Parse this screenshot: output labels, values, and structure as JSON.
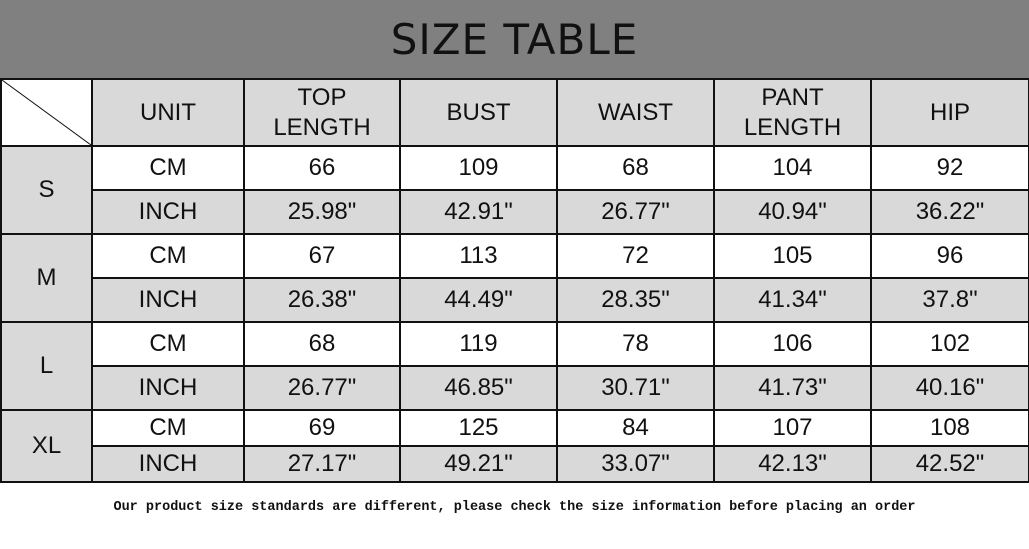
{
  "title": "SIZE TABLE",
  "headers": [
    "UNIT",
    "TOP\nLENGTH",
    "BUST",
    "WAIST",
    "PANT\nLENGTH",
    "HIP"
  ],
  "sizes": [
    {
      "size": "S",
      "cm": {
        "unit": "CM",
        "values": [
          "66",
          "109",
          "68",
          "104",
          "92"
        ]
      },
      "inch": {
        "unit": "INCH",
        "values": [
          "25.98\"",
          "42.91\"",
          "26.77\"",
          "40.94\"",
          "36.22\""
        ]
      }
    },
    {
      "size": "M",
      "cm": {
        "unit": "CM",
        "values": [
          "67",
          "113",
          "72",
          "105",
          "96"
        ]
      },
      "inch": {
        "unit": "INCH",
        "values": [
          "26.38\"",
          "44.49\"",
          "28.35\"",
          "41.34\"",
          "37.8\""
        ]
      }
    },
    {
      "size": "L",
      "cm": {
        "unit": "CM",
        "values": [
          "68",
          "119",
          "78",
          "106",
          "102"
        ]
      },
      "inch": {
        "unit": "INCH",
        "values": [
          "26.77\"",
          "46.85\"",
          "30.71\"",
          "41.73\"",
          "40.16\""
        ]
      }
    },
    {
      "size": "XL",
      "cm": {
        "unit": "CM",
        "values": [
          "69",
          "125",
          "84",
          "107",
          "108"
        ]
      },
      "inch": {
        "unit": "INCH",
        "values": [
          "27.17\"",
          "49.21\"",
          "33.07\"",
          "42.13\"",
          "42.52\""
        ]
      }
    }
  ],
  "note": "Our product size standards are different, please check the size information before placing an order",
  "colors": {
    "title_bar": "#808080",
    "shaded_cell": "#d9d9d9"
  }
}
